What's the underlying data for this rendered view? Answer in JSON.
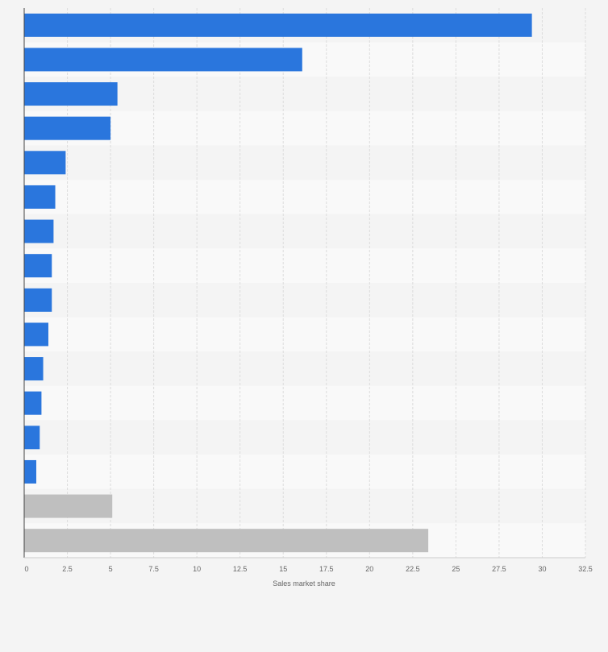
{
  "chart_data": {
    "type": "bar",
    "orientation": "horizontal",
    "title": "",
    "xlabel": "Sales market share",
    "ylabel": "",
    "xlim": [
      0,
      32.5
    ],
    "xticks": [
      "0",
      "2.5",
      "5",
      "7.5",
      "10",
      "12.5",
      "15",
      "17.5",
      "20",
      "22.5",
      "25",
      "27.5",
      "30",
      "32.5"
    ],
    "grid": true,
    "legend": "none",
    "values": [
      29.4,
      16.1,
      5.4,
      5.0,
      2.4,
      1.8,
      1.7,
      1.6,
      1.6,
      1.4,
      1.1,
      1.0,
      0.9,
      0.7,
      5.1,
      23.4
    ],
    "bar_colors": [
      "#2a76dd",
      "#2a76dd",
      "#2a76dd",
      "#2a76dd",
      "#2a76dd",
      "#2a76dd",
      "#2a76dd",
      "#2a76dd",
      "#2a76dd",
      "#2a76dd",
      "#2a76dd",
      "#2a76dd",
      "#2a76dd",
      "#2a76dd",
      "#bfbfbf",
      "#bfbfbf"
    ]
  },
  "colors": {
    "primary_bar": "#2a76dd",
    "secondary_bar": "#bfbfbf",
    "background": "#f4f4f4",
    "band_light": "#f9f9f9",
    "band_dark": "#f4f4f4",
    "grid": "#dcdcdc",
    "axis": "#444444"
  }
}
